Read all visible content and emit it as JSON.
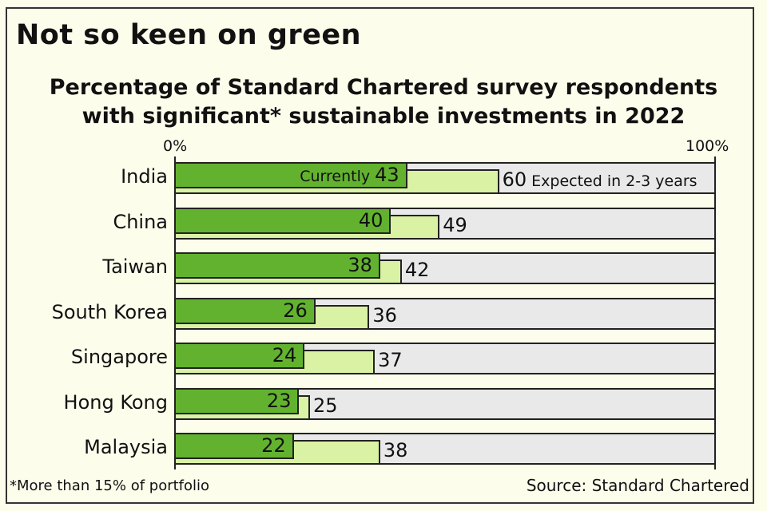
{
  "header": {
    "title": "Not so keen on green",
    "subtitle_line1": "Percentage of Standard Chartered survey respondents",
    "subtitle_line2": "with significant* sustainable investments in 2022"
  },
  "axis": {
    "min_label": "0%",
    "max_label": "100%"
  },
  "legend": {
    "current_prefix": "Currently",
    "expected_suffix": "Expected in 2-3 years"
  },
  "rows": [
    {
      "country": "India",
      "current": "43",
      "expected": "60"
    },
    {
      "country": "China",
      "current": "40",
      "expected": "49"
    },
    {
      "country": "Taiwan",
      "current": "38",
      "expected": "42"
    },
    {
      "country": "South Korea",
      "current": "26",
      "expected": "36"
    },
    {
      "country": "Singapore",
      "current": "24",
      "expected": "37"
    },
    {
      "country": "Hong Kong",
      "current": "23",
      "expected": "25"
    },
    {
      "country": "Malaysia",
      "current": "22",
      "expected": "38"
    }
  ],
  "footer": {
    "footnote": "*More than 15% of portfolio",
    "source": "Source: Standard Chartered"
  },
  "colors": {
    "current": "#62b22f",
    "expected": "#d9f2a3",
    "track": "#e9e9ea",
    "background": "#fdfdec"
  },
  "chart_data": {
    "type": "bar",
    "orientation": "horizontal",
    "title": "Not so keen on green",
    "subtitle": "Percentage of Standard Chartered survey respondents with significant* sustainable investments in 2022",
    "categories": [
      "India",
      "China",
      "Taiwan",
      "South Korea",
      "Singapore",
      "Hong Kong",
      "Malaysia"
    ],
    "series": [
      {
        "name": "Currently",
        "values": [
          43,
          40,
          38,
          26,
          24,
          23,
          22
        ],
        "color": "#62b22f"
      },
      {
        "name": "Expected in 2-3 years",
        "values": [
          60,
          49,
          42,
          36,
          37,
          25,
          38
        ],
        "color": "#d9f2a3"
      }
    ],
    "xlabel": "",
    "ylabel": "",
    "xlim": [
      0,
      100
    ],
    "x_tick_labels": [
      "0%",
      "100%"
    ],
    "grid": false,
    "annotations": [
      "*More than 15% of portfolio",
      "Source: Standard Chartered"
    ]
  }
}
